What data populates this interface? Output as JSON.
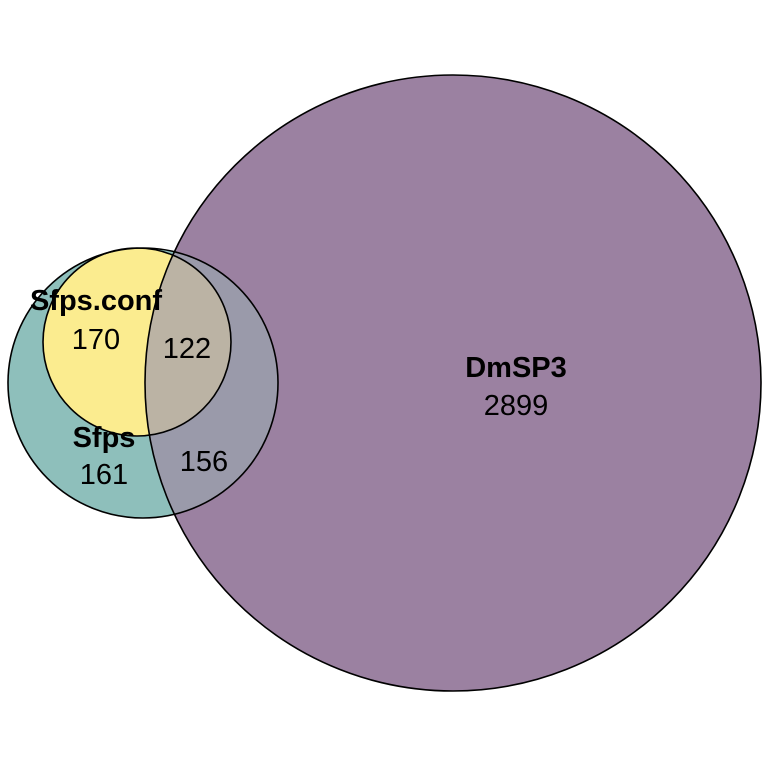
{
  "diagram": {
    "type": "venn",
    "sets": [
      {
        "id": "dmsp3",
        "name": "DmSP3",
        "color": "#9B81A1"
      },
      {
        "id": "sfps",
        "name": "Sfps",
        "color": "#8EBFBB"
      },
      {
        "id": "sfps_conf",
        "name": "Sfps.conf",
        "color": "#FBEC8F"
      }
    ],
    "regions": {
      "dmsp3_only": "2899",
      "sfps_only": "161",
      "sfps_conf_only": "170",
      "sfps_conf_and_dmsp3": "122",
      "sfps_and_dmsp3": "156"
    },
    "overlap_colors": {
      "sfps_and_dmsp3": "#9A9AAA",
      "sfps_conf_and_dmsp3": "#BBB3A4"
    }
  }
}
